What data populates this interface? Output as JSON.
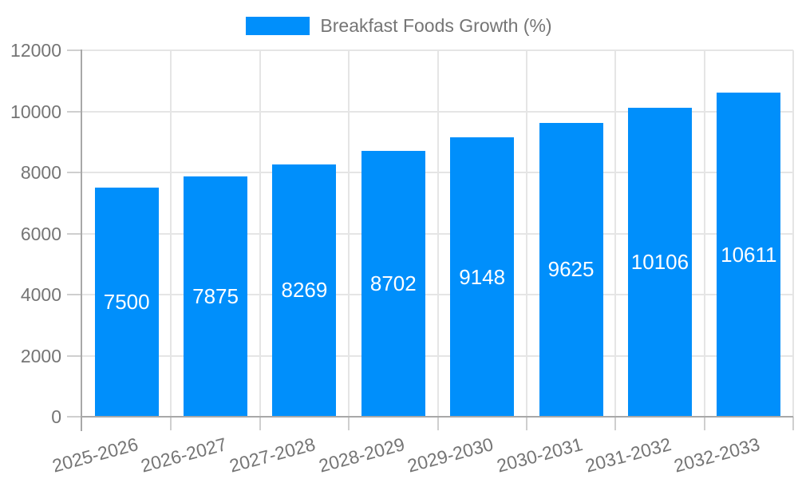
{
  "chart_data": {
    "type": "bar",
    "title": "Breakfast Foods Growth (%)",
    "categories": [
      "2025-2026",
      "2026-2027",
      "2027-2028",
      "2028-2029",
      "2029-2030",
      "2030-2031",
      "2031-2032",
      "2032-2033"
    ],
    "values": [
      7500,
      7875,
      8269,
      8702,
      9148,
      9625,
      10106,
      10611
    ],
    "series": [
      {
        "name": "Breakfast Foods Growth (%)",
        "values": [
          7500,
          7875,
          8269,
          8702,
          9148,
          9625,
          10106,
          10611
        ]
      }
    ],
    "xlabel": "",
    "ylabel": "",
    "ylim": [
      0,
      12000
    ],
    "ytick_step": 2000,
    "yticks": [
      "0",
      "2000",
      "4000",
      "6000",
      "8000",
      "10000",
      "12000"
    ],
    "grid": true,
    "legend_position": "top-center",
    "value_labels_position": "inside-center",
    "x_label_rotation_deg": -15,
    "colors": {
      "bar": "#008ffb",
      "grid": "#e5e5e5",
      "axis": "#a8a8a8",
      "tick": "#cfcfcf",
      "text": "#757575",
      "value_label": "#ffffff",
      "background": "#ffffff"
    }
  }
}
